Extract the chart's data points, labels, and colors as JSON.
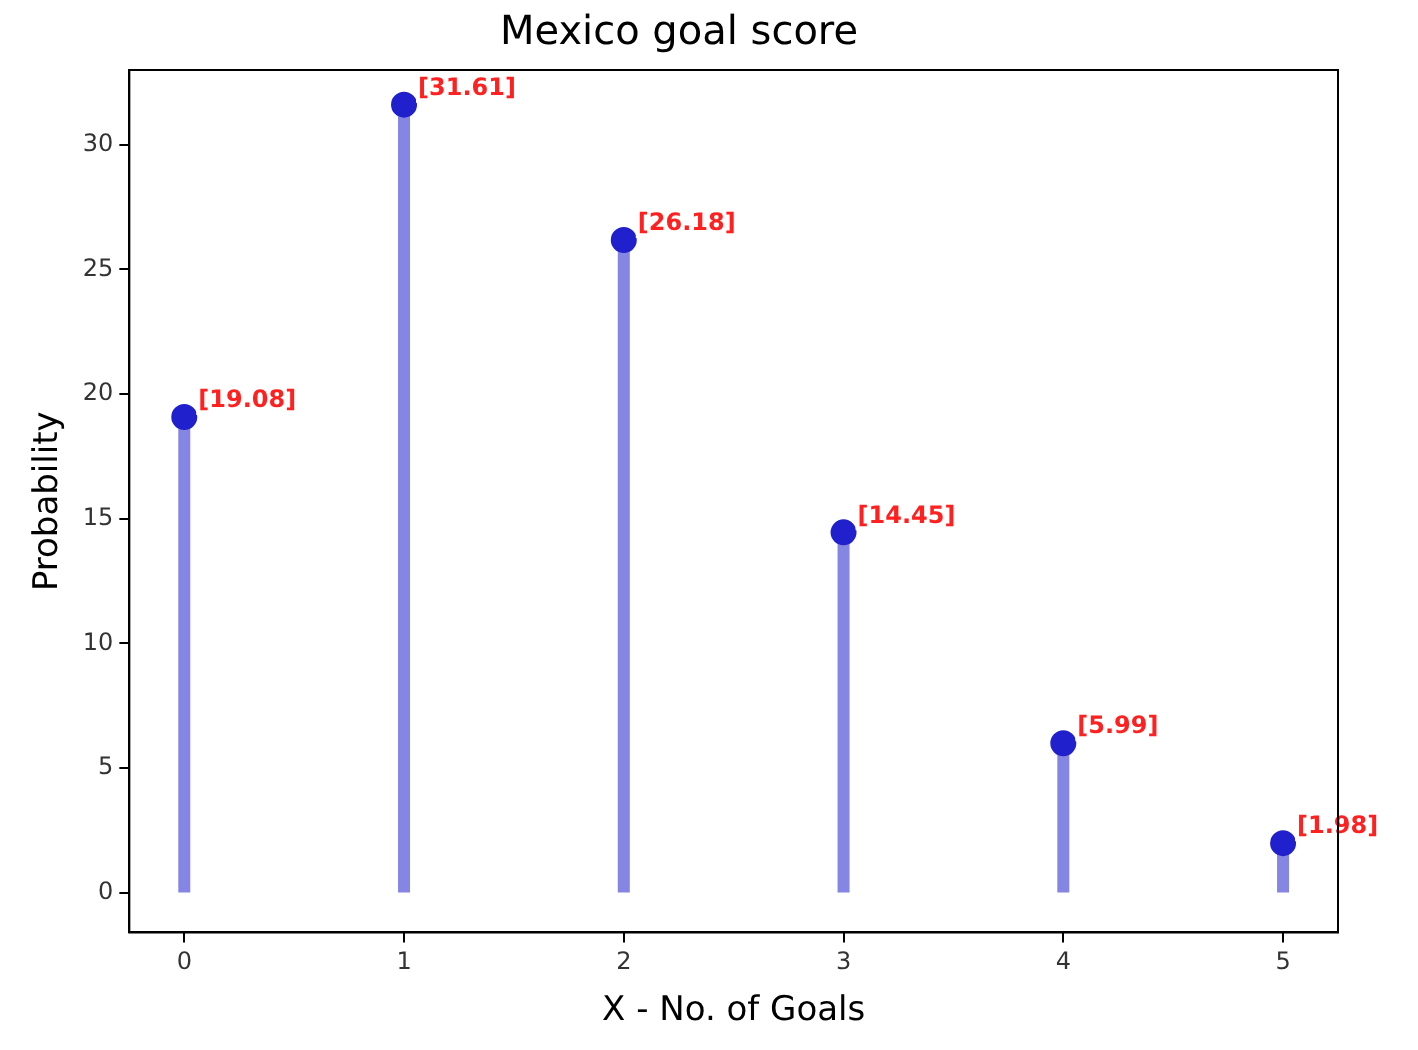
{
  "chart_data": {
    "type": "lollipop",
    "title": "Mexico goal score",
    "xlabel": "X - No. of Goals",
    "ylabel": "Probability",
    "x": [
      0,
      1,
      2,
      3,
      4,
      5
    ],
    "values": [
      19.08,
      31.61,
      26.18,
      14.45,
      5.99,
      1.98
    ],
    "value_labels": [
      "[19.08]",
      "[31.61]",
      "[26.18]",
      "[14.45]",
      "[5.99]",
      "[1.98]"
    ],
    "color": "#2020cc",
    "marker": "circle",
    "xlim": [
      -0.25,
      5.25
    ],
    "xticks": [
      0,
      1,
      2,
      3,
      4,
      5
    ],
    "ylim": [
      -1.6,
      33
    ],
    "yticks": [
      0,
      5,
      10,
      15,
      20,
      25,
      30
    ]
  }
}
